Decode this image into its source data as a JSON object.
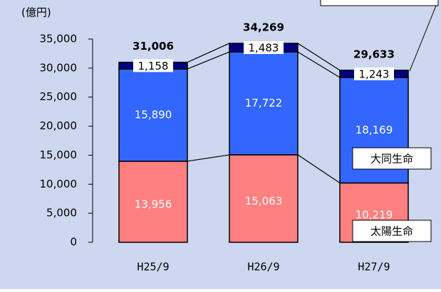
{
  "chart_data": {
    "type": "stacked_bar",
    "y_unit": "(億円)",
    "categories": [
      "H25/9",
      "H26/9",
      "H27/9"
    ],
    "series": [
      {
        "name": "太陽生命",
        "color": "#ff8080",
        "values": [
          13956,
          15063,
          10219
        ],
        "value_labels": [
          "13,956",
          "15,063",
          "10,219"
        ]
      },
      {
        "name": "大同生命",
        "color": "#3366ff",
        "values": [
          15890,
          17722,
          18169
        ],
        "value_labels": [
          "15,890",
          "17,722",
          "18,169"
        ]
      },
      {
        "color": "#000080",
        "values": [
          1158,
          1483,
          1243
        ],
        "value_labels": [
          "1,158",
          "1,483",
          "1,243"
        ]
      }
    ],
    "totals": [
      31006,
      34269,
      29633
    ],
    "total_labels": [
      "31,006",
      "34,269",
      "29,633"
    ],
    "ylim": [
      0,
      35000
    ],
    "yticks": [
      0,
      {
        "value": 5000,
        "label": "5,000"
      },
      {
        "value": 10000,
        "label": "10,000"
      },
      {
        "value": 15000,
        "label": "15,000"
      },
      {
        "value": 20000,
        "label": "20,000"
      },
      {
        "value": 25000,
        "label": "25,000"
      },
      {
        "value": 30000,
        "label": "30,000"
      },
      {
        "value": 35000,
        "label": "35,000"
      }
    ]
  }
}
